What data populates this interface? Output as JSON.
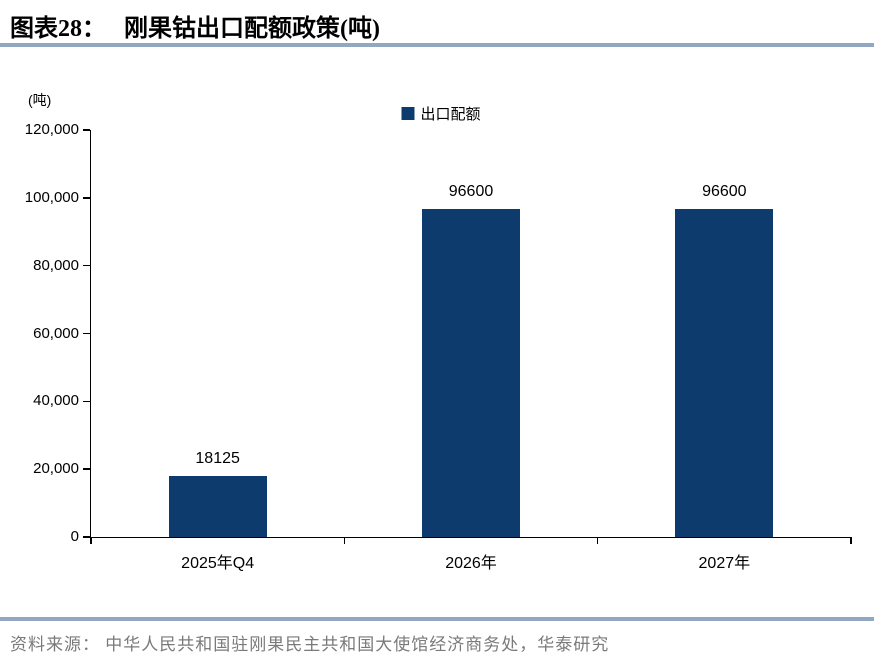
{
  "header": {
    "figure_label": "图表28：",
    "title": "刚果钴出口配额政策(吨)"
  },
  "chart_data": {
    "type": "bar",
    "title": "刚果钴出口配额政策(吨)",
    "unit_label": "(吨)",
    "categories": [
      "2025年Q4",
      "2026年",
      "2027年"
    ],
    "series": [
      {
        "name": "出口配额",
        "values": [
          18125,
          96600,
          96600
        ]
      }
    ],
    "data_labels": [
      "18125",
      "96600",
      "96600"
    ],
    "ylim": [
      0,
      120000
    ],
    "ytick_interval": 20000,
    "yticks": [
      "0",
      "20,000",
      "40,000",
      "60,000",
      "80,000",
      "100,000",
      "120,000"
    ],
    "grid": false,
    "legend_position": "top-center",
    "legend_entries": [
      "出口配额"
    ]
  },
  "footer": {
    "source": "资料来源： 中华人民共和国驻刚果民主共和国大使馆经济商务处，华泰研究"
  },
  "colors": {
    "bar": "#0E3B6E",
    "rule": "#92A7C1",
    "source_text": "#7A7A7A",
    "axis": "#000000"
  }
}
